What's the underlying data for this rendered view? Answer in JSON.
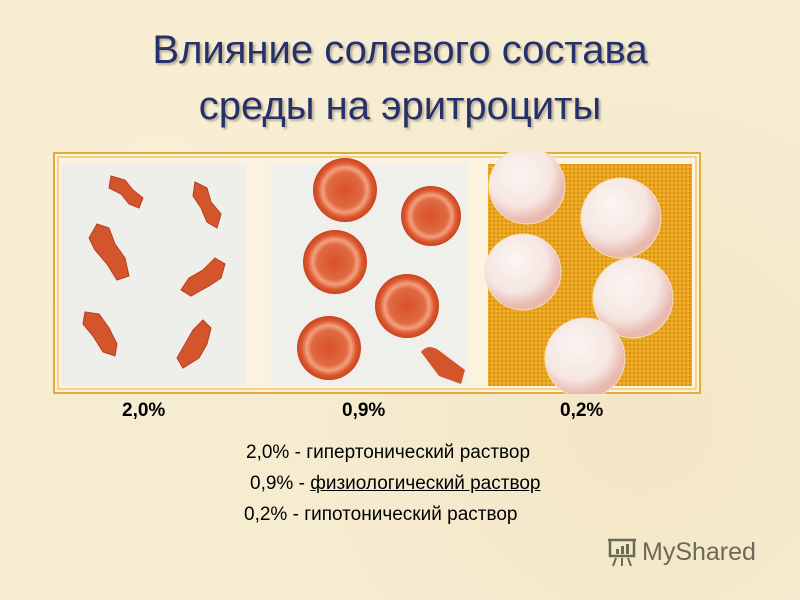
{
  "title": {
    "line1": "Влияние солевого состава",
    "line2": "среды на эритроциты"
  },
  "panel_labels": [
    "2,0%",
    "0,9%",
    "0,2%"
  ],
  "legend": [
    {
      "pct": "2,0%",
      "sep": " - ",
      "text": "гипертонический раствор"
    },
    {
      "pct": "0,9%",
      "sep": " - ",
      "text": "физиологический раствор",
      "underlined": true
    },
    {
      "pct": "0,2%",
      "sep": " - ",
      "text": "гипотонический раствор"
    }
  ],
  "watermark": {
    "text": "MyShared",
    "icon": "presentation-board-icon"
  },
  "colors": {
    "title": "#26306a",
    "cell": "#d9532b",
    "hypotonic_bg": "#e9a21c",
    "frame": "#e7b23c"
  }
}
